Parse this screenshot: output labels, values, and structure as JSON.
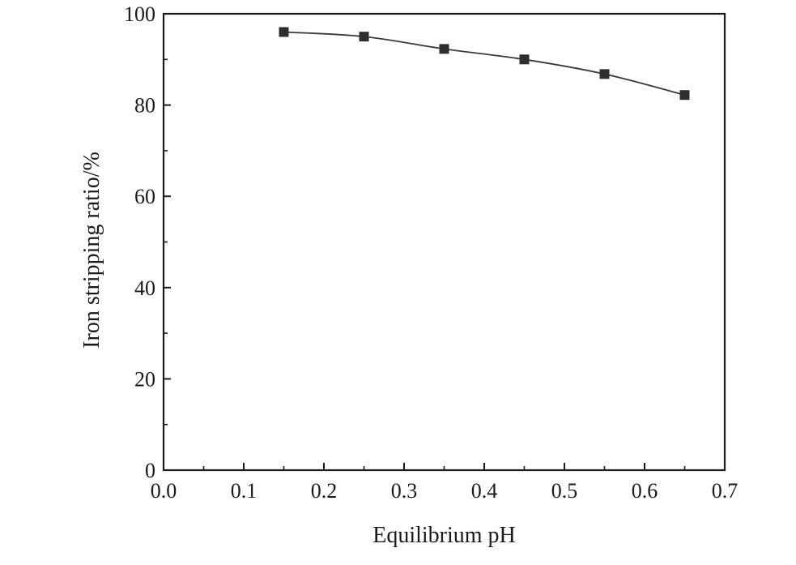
{
  "chart_data": {
    "type": "line",
    "title": "",
    "xlabel": "Equilibrium pH",
    "ylabel": "Iron stripping ratio/%",
    "xlim": [
      0.0,
      0.7
    ],
    "ylim": [
      0,
      100
    ],
    "x_ticks": [
      "0.0",
      "0.1",
      "0.2",
      "0.3",
      "0.4",
      "0.5",
      "0.6",
      "0.7"
    ],
    "y_ticks": [
      "0",
      "20",
      "40",
      "60",
      "80",
      "100"
    ],
    "grid": false,
    "legend": "none",
    "marker": "square",
    "series": [
      {
        "x": [
          0.15,
          0.25,
          0.35,
          0.45,
          0.55,
          0.65
        ],
        "y": [
          96.0,
          95.0,
          92.3,
          90.0,
          86.8,
          82.2
        ]
      }
    ],
    "colors": {
      "line": "#3a3a3a",
      "marker": "#2e2e2e",
      "axis": "#1a1a1a"
    }
  }
}
